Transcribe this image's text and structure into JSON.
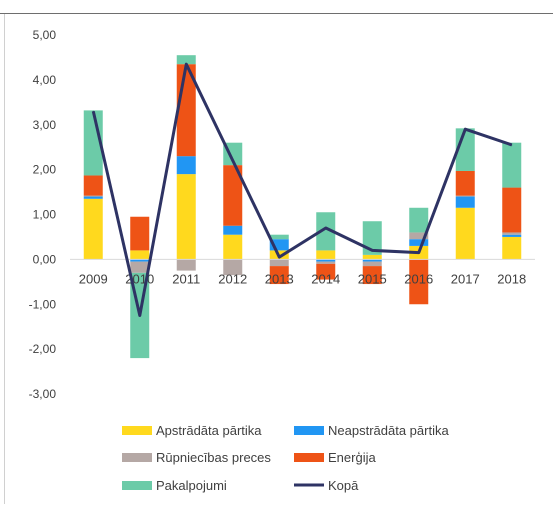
{
  "header": {
    "title_fragment": ""
  },
  "colors": {
    "processed_food": "#ffd91e",
    "unprocessed_food": "#2196f3",
    "industrial_goods": "#b5a8a5",
    "energy": "#ee5316",
    "services": "#6ccba8",
    "total": "#2e3364"
  },
  "chart_data": {
    "type": "bar",
    "stacked": true,
    "categories": [
      "2009",
      "2010",
      "2011",
      "2012",
      "2013",
      "2014",
      "2015",
      "2016",
      "2017",
      "2018"
    ],
    "ylim": [
      -3,
      5
    ],
    "yticks": [
      "5,00",
      "4,00",
      "3,00",
      "2,00",
      "1,00",
      "0,00",
      "-1,00",
      "-2,00",
      "-3,00"
    ],
    "ytick_values": [
      5,
      4,
      3,
      2,
      1,
      0,
      -1,
      -2,
      -3
    ],
    "series": [
      {
        "name": "Apstrādāta pārtika",
        "key": "processed_food",
        "values": [
          1.35,
          0.2,
          1.9,
          0.55,
          0.2,
          0.2,
          0.1,
          0.3,
          1.15,
          0.5
        ]
      },
      {
        "name": "Neapstrādāta pārtika",
        "key": "unprocessed_food",
        "values": [
          0.05,
          -0.05,
          0.4,
          0.2,
          0.25,
          -0.05,
          -0.05,
          0.15,
          0.25,
          0.05
        ]
      },
      {
        "name": "Rūpniecības preces",
        "key": "industrial_goods",
        "values": [
          0.02,
          -0.25,
          -0.25,
          -0.35,
          -0.15,
          -0.05,
          -0.1,
          0.15,
          0.02,
          0.05
        ]
      },
      {
        "name": "Enerģija",
        "key": "energy",
        "values": [
          0.45,
          0.75,
          2.05,
          1.35,
          -0.4,
          -0.35,
          -0.4,
          -1.0,
          0.55,
          1.0
        ]
      },
      {
        "name": "Pakalpojumi",
        "key": "services",
        "values": [
          1.45,
          -1.9,
          0.2,
          0.5,
          0.1,
          0.85,
          0.75,
          0.55,
          0.95,
          1.0
        ]
      }
    ],
    "line": {
      "name": "Kopā",
      "key": "total",
      "values": [
        3.3,
        -1.25,
        4.35,
        2.2,
        0.05,
        0.7,
        0.2,
        0.15,
        2.9,
        2.55
      ]
    },
    "legend": [
      {
        "label": "Apstrādāta pārtika",
        "key": "processed_food",
        "kind": "box"
      },
      {
        "label": "Neapstrādāta pārtika",
        "key": "unprocessed_food",
        "kind": "box"
      },
      {
        "label": "Rūpniecības preces",
        "key": "industrial_goods",
        "kind": "box"
      },
      {
        "label": "Enerģija",
        "key": "energy",
        "kind": "box"
      },
      {
        "label": "Pakalpojumi",
        "key": "services",
        "kind": "box"
      },
      {
        "label": "Kopā",
        "key": "total",
        "kind": "line"
      }
    ],
    "legend_position": "bottom",
    "grid": false
  }
}
